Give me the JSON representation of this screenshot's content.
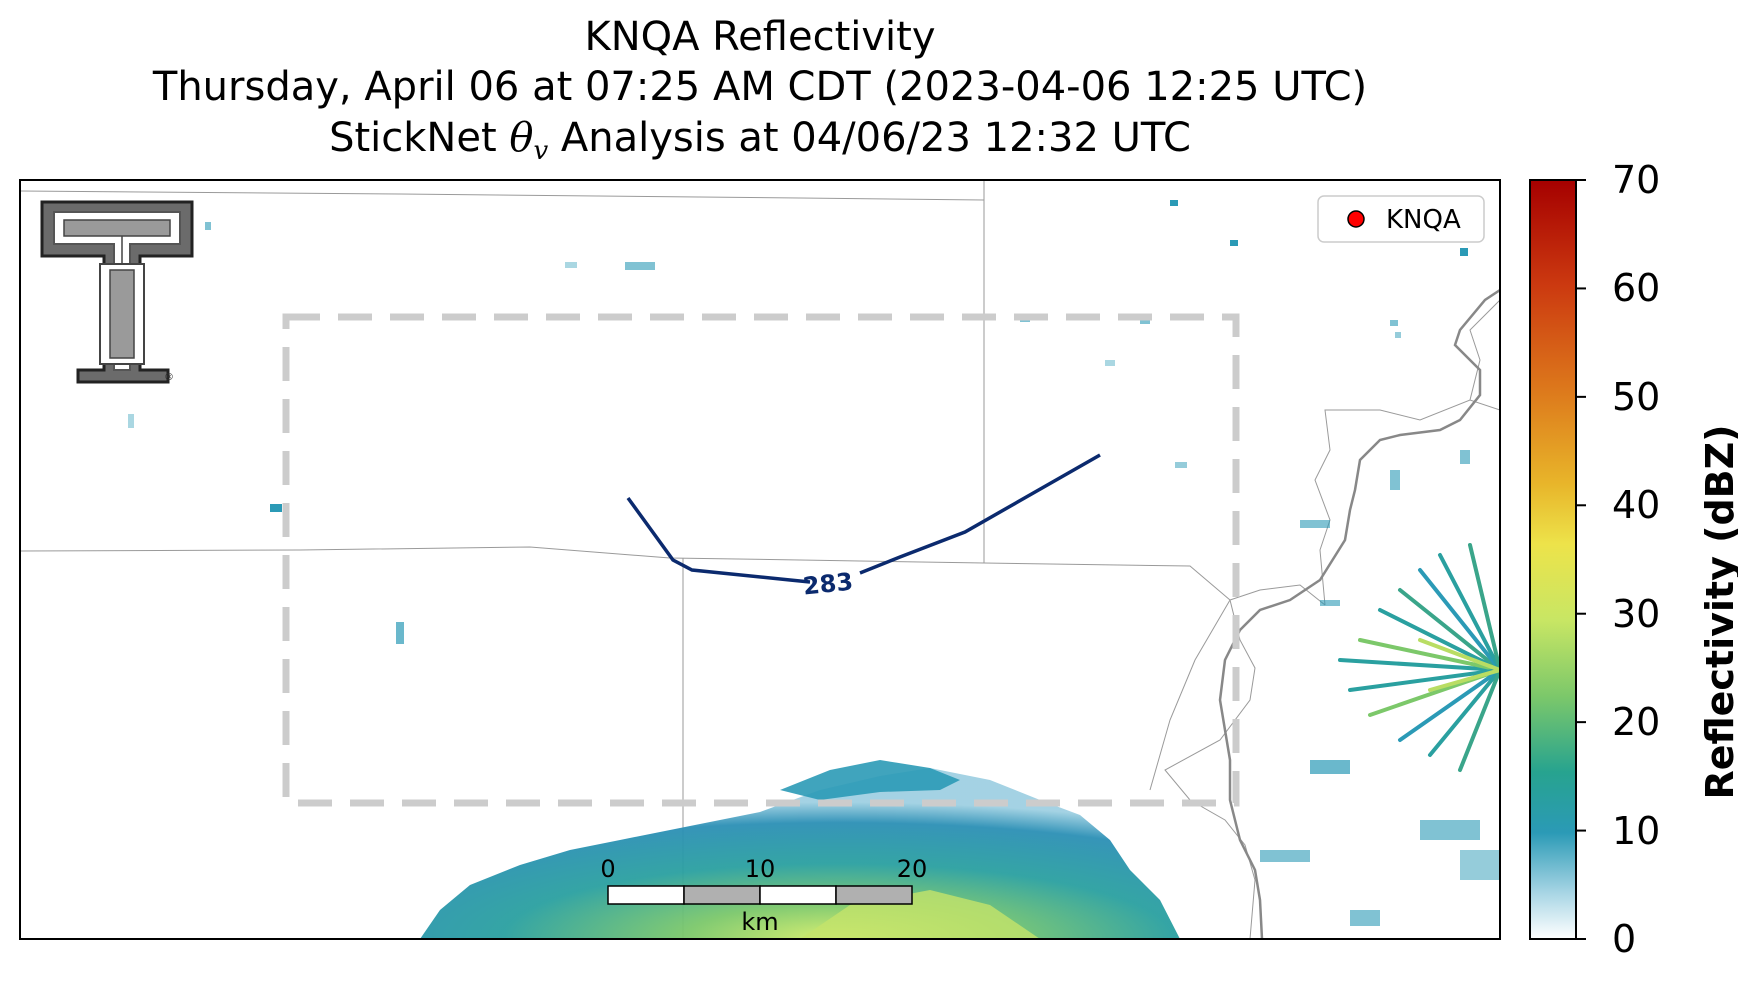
{
  "title": {
    "line1": "KNQA Reflectivity",
    "line2": "Thursday, April 06 at 07:25 AM CDT (2023-04-06 12:25 UTC)",
    "line3_prefix": "StickNet ",
    "line3_symbol": "θ",
    "line3_subscript": "v",
    "line3_suffix": " Analysis at 04/06/23 12:32 UTC"
  },
  "legend": {
    "marker_color": "#ff0000",
    "label": "KNQA"
  },
  "contour": {
    "label": "283",
    "color": "#0b2a6e"
  },
  "scale_bar": {
    "ticks": [
      "0",
      "10",
      "20"
    ],
    "unit": "km"
  },
  "colorbar": {
    "label": "Reflectivity (dBZ)",
    "min": 0,
    "max": 70,
    "ticks": [
      "0",
      "10",
      "20",
      "30",
      "40",
      "50",
      "60",
      "70"
    ]
  },
  "logo": {
    "name": "texas-tech-double-t-logo"
  },
  "analysis_box_color": "#cccccc"
}
